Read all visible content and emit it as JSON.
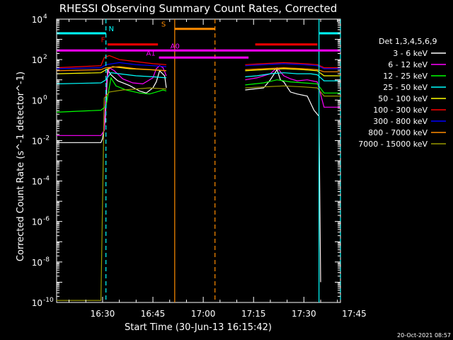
{
  "chart_data": {
    "type": "line",
    "title": "RHESSI Observing Summary Count Rates, Corrected",
    "ylabel": "Corrected Count Rate (s^-1 detector^-1)",
    "xlabel": "Start Time (30-Jun-13 16:15:42)",
    "footer": "20-Oct-2021 08:57",
    "x_range_minutes": [
      16.3,
      100.9
    ],
    "ylim_exp": [
      -10,
      4
    ],
    "y_scale": "log",
    "y_ticks": [
      {
        "exp": 4,
        "base": "10",
        "sup": "4"
      },
      {
        "exp": 2,
        "base": "10",
        "sup": "2"
      },
      {
        "exp": 0,
        "base": "10",
        "sup": "0"
      },
      {
        "exp": -2,
        "base": "10",
        "sup": "-2"
      },
      {
        "exp": -4,
        "base": "10",
        "sup": "-4"
      },
      {
        "exp": -6,
        "base": "10",
        "sup": "-6"
      },
      {
        "exp": -8,
        "base": "10",
        "sup": "-8"
      },
      {
        "exp": -10,
        "base": "10",
        "sup": "-10"
      }
    ],
    "x_ticks": [
      {
        "label": "16:30",
        "minute": 30
      },
      {
        "label": "16:45",
        "minute": 45
      },
      {
        "label": "17:00",
        "minute": 60
      },
      {
        "label": "17:15",
        "minute": 75
      },
      {
        "label": "17:30",
        "minute": 90
      },
      {
        "label": "17:45",
        "minute": 105
      }
    ],
    "legend_title": "Det 1,3,4,5,6,9",
    "series": [
      {
        "name": "3 - 6 keV",
        "color": "#ffffff",
        "segments": [
          [
            [
              16.3,
              -2.1
            ],
            [
              29.5,
              -2.1
            ],
            [
              30.0,
              -1.9
            ],
            [
              30.8,
              -1.0
            ],
            [
              31.5,
              1.5
            ],
            [
              32.5,
              1.25
            ],
            [
              34.5,
              0.95
            ],
            [
              38.0,
              0.72
            ],
            [
              41.0,
              0.45
            ],
            [
              43.0,
              0.35
            ],
            [
              45.0,
              0.6
            ],
            [
              46.0,
              0.9
            ],
            [
              47.0,
              1.45
            ],
            [
              48.5,
              1.2
            ],
            [
              49.0,
              0.6
            ]
          ],
          [
            [
              72.5,
              0.5
            ],
            [
              75.0,
              0.55
            ],
            [
              78.0,
              0.6
            ],
            [
              80.0,
              1.0
            ],
            [
              82.0,
              1.5
            ],
            [
              83.0,
              1.0
            ],
            [
              84.0,
              0.9
            ],
            [
              86.0,
              0.4
            ],
            [
              88.0,
              0.3
            ],
            [
              91.0,
              0.2
            ],
            [
              93.0,
              -0.5
            ],
            [
              94.5,
              -0.8
            ],
            [
              95.0,
              -9.0
            ]
          ]
        ]
      },
      {
        "name": "6 - 12 keV",
        "color": "#ff00ff",
        "segments": [
          [
            [
              16.3,
              -1.75
            ],
            [
              29.5,
              -1.75
            ],
            [
              30.5,
              -1.5
            ],
            [
              31.2,
              1.0
            ],
            [
              32.0,
              1.6
            ],
            [
              33.5,
              1.45
            ],
            [
              36.0,
              1.05
            ],
            [
              39.0,
              0.85
            ],
            [
              42.0,
              0.8
            ],
            [
              45.0,
              1.1
            ],
            [
              46.0,
              1.55
            ],
            [
              47.0,
              1.7
            ],
            [
              48.0,
              1.6
            ],
            [
              49.0,
              1.2
            ]
          ],
          [
            [
              72.5,
              1.0
            ],
            [
              76.0,
              1.1
            ],
            [
              80.0,
              1.3
            ],
            [
              82.0,
              1.6
            ],
            [
              84.0,
              1.2
            ],
            [
              86.0,
              1.05
            ],
            [
              88.0,
              0.95
            ],
            [
              91.0,
              1.0
            ],
            [
              94.0,
              0.9
            ],
            [
              96.0,
              -0.35
            ],
            [
              100.9,
              -0.35
            ]
          ]
        ]
      },
      {
        "name": "12 - 25 keV",
        "color": "#00ff00",
        "segments": [
          [
            [
              16.3,
              -0.6
            ],
            [
              29.5,
              -0.5
            ],
            [
              31.0,
              -0.3
            ],
            [
              32.5,
              1.1
            ],
            [
              34.0,
              0.7
            ],
            [
              37.0,
              0.5
            ],
            [
              41.0,
              0.35
            ],
            [
              44.0,
              0.3
            ],
            [
              46.0,
              0.4
            ],
            [
              48.0,
              0.5
            ],
            [
              49.0,
              0.45
            ]
          ],
          [
            [
              72.5,
              0.75
            ],
            [
              78.0,
              0.85
            ],
            [
              82.0,
              1.0
            ],
            [
              86.0,
              0.9
            ],
            [
              90.0,
              0.85
            ],
            [
              94.0,
              0.8
            ],
            [
              96.0,
              0.35
            ],
            [
              100.9,
              0.35
            ]
          ]
        ]
      },
      {
        "name": "25 - 50 keV",
        "color": "#00ffff",
        "segments": [
          [
            [
              16.3,
              0.8
            ],
            [
              29.5,
              0.85
            ],
            [
              31.0,
              1.0
            ],
            [
              32.5,
              1.35
            ],
            [
              35.0,
              1.3
            ],
            [
              40.0,
              1.2
            ],
            [
              45.0,
              1.15
            ],
            [
              49.0,
              1.1
            ]
          ],
          [
            [
              72.5,
              1.15
            ],
            [
              76.0,
              1.2
            ],
            [
              80.0,
              1.3
            ],
            [
              84.0,
              1.35
            ],
            [
              88.0,
              1.3
            ],
            [
              92.0,
              1.3
            ],
            [
              94.0,
              1.25
            ],
            [
              96.0,
              0.95
            ],
            [
              100.9,
              0.95
            ]
          ]
        ]
      },
      {
        "name": "50 - 100 keV",
        "color": "#ffff00",
        "segments": [
          [
            [
              16.3,
              1.3
            ],
            [
              29.5,
              1.35
            ],
            [
              31.0,
              1.5
            ],
            [
              33.0,
              1.65
            ],
            [
              38.0,
              1.55
            ],
            [
              44.0,
              1.5
            ],
            [
              49.0,
              1.45
            ]
          ],
          [
            [
              72.5,
              1.45
            ],
            [
              78.0,
              1.5
            ],
            [
              84.0,
              1.55
            ],
            [
              90.0,
              1.5
            ],
            [
              94.0,
              1.45
            ],
            [
              96.0,
              1.2
            ],
            [
              100.9,
              1.2
            ]
          ]
        ]
      },
      {
        "name": "100 - 300 keV",
        "color": "#ff0000",
        "segments": [
          [
            [
              16.3,
              1.6
            ],
            [
              29.5,
              1.7
            ],
            [
              30.5,
              2.1
            ],
            [
              32.0,
              2.2
            ],
            [
              35.0,
              2.0
            ],
            [
              40.0,
              1.9
            ],
            [
              45.0,
              1.8
            ],
            [
              49.0,
              1.75
            ]
          ],
          [
            [
              72.5,
              1.75
            ],
            [
              78.0,
              1.8
            ],
            [
              84.0,
              1.85
            ],
            [
              90.0,
              1.8
            ],
            [
              94.0,
              1.75
            ],
            [
              96.0,
              1.6
            ],
            [
              100.9,
              1.6
            ]
          ]
        ]
      },
      {
        "name": "300 - 800 keV",
        "color": "#0000ff",
        "segments": [
          [
            [
              16.3,
              1.55
            ],
            [
              29.5,
              1.6
            ],
            [
              31.0,
              1.75
            ],
            [
              35.0,
              1.85
            ],
            [
              40.0,
              1.75
            ],
            [
              45.0,
              1.7
            ],
            [
              49.0,
              1.65
            ]
          ],
          [
            [
              72.5,
              1.7
            ],
            [
              78.0,
              1.75
            ],
            [
              84.0,
              1.8
            ],
            [
              90.0,
              1.75
            ],
            [
              94.0,
              1.7
            ],
            [
              96.0,
              1.55
            ],
            [
              100.9,
              1.55
            ]
          ]
        ]
      },
      {
        "name": "800 - 7000 keV",
        "color": "#ff8c00",
        "segments": [
          [
            [
              16.3,
              1.45
            ],
            [
              29.5,
              1.5
            ],
            [
              31.0,
              1.6
            ],
            [
              35.0,
              1.65
            ],
            [
              40.0,
              1.55
            ],
            [
              45.0,
              1.5
            ],
            [
              49.0,
              1.45
            ]
          ],
          [
            [
              72.5,
              1.5
            ],
            [
              78.0,
              1.55
            ],
            [
              84.0,
              1.6
            ],
            [
              90.0,
              1.55
            ],
            [
              94.0,
              1.5
            ],
            [
              96.0,
              1.4
            ],
            [
              100.9,
              1.4
            ]
          ]
        ]
      },
      {
        "name": "7000 - 15000 keV",
        "color": "#999900",
        "segments": [
          [
            [
              16.3,
              -9.9
            ],
            [
              29.5,
              -9.9
            ],
            [
              30.5,
              0.1
            ],
            [
              31.0,
              0.2
            ],
            [
              32.0,
              0.4
            ],
            [
              36.0,
              0.5
            ],
            [
              40.0,
              0.55
            ],
            [
              44.0,
              0.6
            ],
            [
              49.0,
              0.55
            ]
          ],
          [
            [
              72.5,
              0.6
            ],
            [
              78.0,
              0.65
            ],
            [
              84.0,
              0.7
            ],
            [
              90.0,
              0.65
            ],
            [
              94.0,
              0.6
            ],
            [
              96.0,
              0.2
            ],
            [
              100.9,
              0.2
            ]
          ]
        ]
      }
    ],
    "markers": [
      {
        "label": "N",
        "color": "#00ffff",
        "y_exp": 3.3,
        "bars": [
          [
            16.3,
            31.0
          ],
          [
            94.5,
            100.9
          ]
        ],
        "label_x": 31.8
      },
      {
        "label": "F",
        "color": "#ff0000",
        "y_exp": 2.75,
        "bars": [
          [
            31.5,
            46.5
          ],
          [
            75.5,
            94.0
          ]
        ],
        "label_x": 29.5
      },
      {
        "label": "S",
        "color": "#ff8c00",
        "y_exp": 3.52,
        "bars": [
          [
            51.5,
            63.5
          ]
        ],
        "label_x": 47.5
      },
      {
        "label": "A0",
        "color": "#ff00ff",
        "y_exp": 2.45,
        "bars": [
          [
            16.3,
            100.9
          ]
        ],
        "label_x": 50.2
      },
      {
        "label": "A1",
        "color": "#ff00ff",
        "y_exp": 2.1,
        "bars": [
          [
            46.8,
            73.5
          ]
        ],
        "label_x": 43.0
      }
    ],
    "vlines": [
      {
        "x": 31.0,
        "color": "#00ffff",
        "style": "dashed"
      },
      {
        "x": 94.5,
        "color": "#00ffff",
        "style": "solid"
      },
      {
        "x": 100.9,
        "color": "#00ffff",
        "style": "dashed"
      },
      {
        "x": 51.5,
        "color": "#ff8c00",
        "style": "solid"
      },
      {
        "x": 63.5,
        "color": "#ff8c00",
        "style": "dashed"
      }
    ]
  }
}
